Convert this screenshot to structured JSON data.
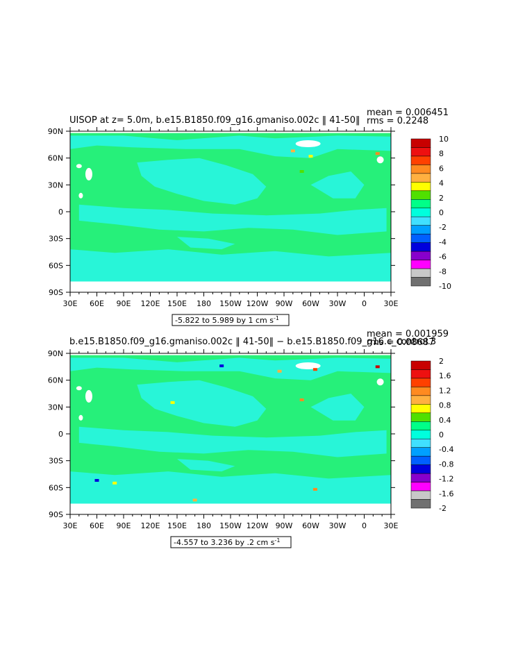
{
  "chart_data": [
    {
      "type": "heatmap",
      "title": "UISOP at z=    5.0m, b.e15.B1850.f09_g16.gmaniso.002c ‖ 41-50‖",
      "stats": {
        "mean": "mean = 0.006451",
        "rms": "rms = 0.2248"
      },
      "range_label": "-5.822 to 5.989 by 1 cm s",
      "range_superscript": "-1",
      "x_ticks": [
        "30E",
        "60E",
        "90E",
        "120E",
        "150E",
        "180",
        "150W",
        "120W",
        "90W",
        "60W",
        "30W",
        "0",
        "30E"
      ],
      "y_ticks": [
        "90N",
        "60N",
        "30N",
        "0",
        "30S",
        "60S",
        "90S"
      ],
      "colorbar_levels": [
        "10",
        "8",
        "6",
        "4",
        "2",
        "0",
        "-2",
        "-4",
        "-6",
        "-8",
        "-10"
      ],
      "colorbar_colors": [
        "#c80000",
        "#ee1010",
        "#ff4000",
        "#ff8a20",
        "#ffb040",
        "#ffff00",
        "#50e000",
        "#00ff88",
        "#00ffdd",
        "#40e0ff",
        "#00a0ff",
        "#0060ff",
        "#0000dd",
        "#8800cc",
        "#ff00ff",
        "#c8c8c8",
        "#707070"
      ],
      "field_colors": {
        "positive": "#26f07a",
        "negative": "#28f5d8",
        "land": "#ffffff"
      },
      "field_range": [
        -5.822,
        5.989
      ],
      "contour_interval": 1,
      "units": "cm s-1"
    },
    {
      "type": "heatmap",
      "title": "b.e15.B1850.f09_g16.gmaniso.002c ‖ 41-50‖  −  b.e15.B1850.f09_g16.c_control.3",
      "stats": {
        "mean": "mean = 0.001959",
        "rms": "rms = 0.08687"
      },
      "range_label": "-4.557 to 3.236 by .2 cm s",
      "range_superscript": "-1",
      "x_ticks": [
        "30E",
        "60E",
        "90E",
        "120E",
        "150E",
        "180",
        "150W",
        "120W",
        "90W",
        "60W",
        "30W",
        "0",
        "30E"
      ],
      "y_ticks": [
        "90N",
        "60N",
        "30N",
        "0",
        "30S",
        "60S",
        "90S"
      ],
      "colorbar_levels": [
        "2",
        "1.6",
        "1.2",
        "0.8",
        "0.4",
        "0",
        "-0.4",
        "-0.8",
        "-1.2",
        "-1.6",
        "-2"
      ],
      "colorbar_colors": [
        "#c80000",
        "#ee1010",
        "#ff4000",
        "#ff8a20",
        "#ffb040",
        "#ffff00",
        "#50e000",
        "#00ff88",
        "#00ffdd",
        "#40e0ff",
        "#00a0ff",
        "#0060ff",
        "#0000dd",
        "#8800cc",
        "#ff00ff",
        "#c8c8c8",
        "#707070"
      ],
      "field_colors": {
        "positive": "#26f07a",
        "negative": "#28f5d8",
        "land": "#ffffff"
      },
      "field_range": [
        -4.557,
        3.236
      ],
      "contour_interval": 0.2,
      "units": "cm s-1"
    }
  ]
}
